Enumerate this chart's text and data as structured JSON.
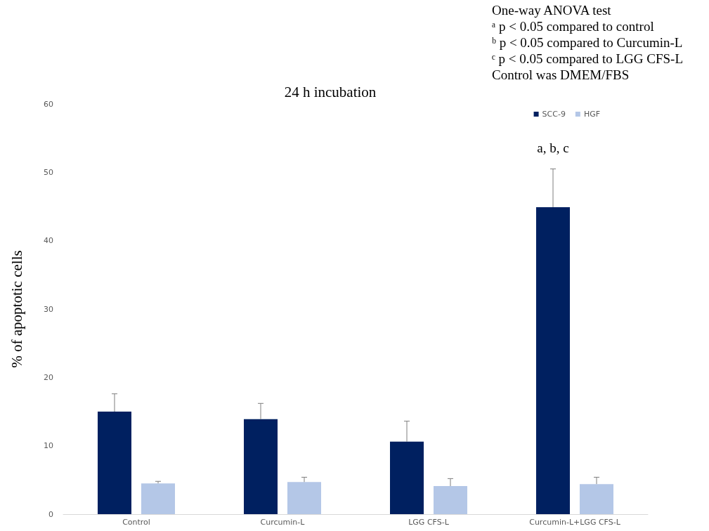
{
  "chart_data": {
    "type": "bar",
    "title": "24 h incubation",
    "ylabel": "% of apoptotic cells",
    "categories": [
      "Control",
      "Curcumin-L",
      "LGG CFS-L",
      "Curcumin-L+LGG CFS-L"
    ],
    "series": [
      {
        "name": "SCC-9",
        "color": "#002060",
        "values": [
          15,
          13.9,
          10.6,
          44.9
        ],
        "errors": [
          [
            15,
            17.6
          ],
          [
            13.9,
            16.2
          ],
          [
            10.6,
            13.6
          ],
          [
            44.9,
            50.5
          ]
        ]
      },
      {
        "name": "HGF",
        "color": "#b4c7e7",
        "values": [
          4.5,
          4.7,
          4.1,
          4.4
        ],
        "errors": [
          [
            4.5,
            4.8
          ],
          [
            4.7,
            5.4
          ],
          [
            4.1,
            5.2
          ],
          [
            4.4,
            5.4
          ]
        ]
      }
    ],
    "ylim": [
      0,
      60
    ],
    "yticks": [
      0,
      10,
      20,
      30,
      40,
      50,
      60
    ],
    "legend": "top right",
    "annotations": [
      "One-way ANOVA test",
      "ᵃ p < 0.05 compared to control",
      "ᵇ p < 0.05 compared to Curcumin-L",
      "ᶜ p < 0.05 compared to LGG CFS-L",
      "Control was DMEM/FBS",
      "a, b, c"
    ]
  }
}
